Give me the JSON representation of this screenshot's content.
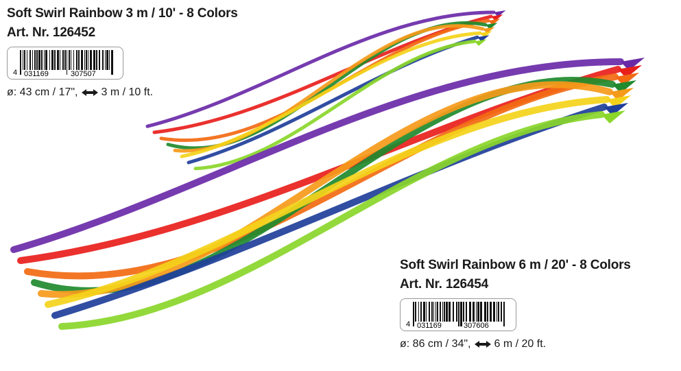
{
  "products": [
    {
      "title": "Soft Swirl Rainbow 3 m / 10' - 8 Colors",
      "art_nr": "Art. Nr. 126452",
      "barcode": {
        "first": "4",
        "left": "031169",
        "right": "307507"
      },
      "diameter": "ø: 43 cm / 17\",",
      "length": "3 m / 10 ft."
    },
    {
      "title": "Soft Swirl Rainbow 6 m / 20' - 8 Colors",
      "art_nr": "Art. Nr. 126454",
      "barcode": {
        "first": "4",
        "left": "031169",
        "right": "307606"
      },
      "diameter": "ø: 86 cm / 34\",",
      "length": "6 m / 20 ft."
    }
  ]
}
